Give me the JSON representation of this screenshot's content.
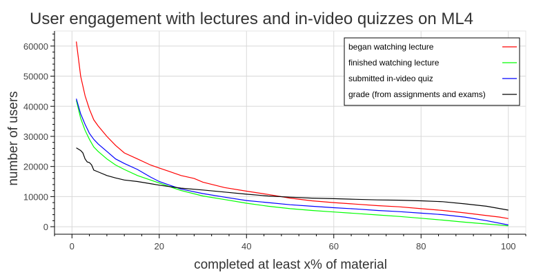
{
  "chart_data": {
    "type": "line",
    "title": "User engagement with lectures and in-video quizzes on ML4",
    "xlabel": "completed at least x% of material",
    "ylabel": "number of users",
    "xlim": [
      -4,
      104
    ],
    "ylim": [
      -2500,
      65000
    ],
    "x_ticks": [
      0,
      20,
      40,
      60,
      80,
      100
    ],
    "y_ticks": [
      0,
      10000,
      20000,
      30000,
      40000,
      50000,
      60000
    ],
    "grid": true,
    "legend_position": "top-right",
    "series": [
      {
        "name": "began watching lecture",
        "color": "#ff0000",
        "points": [
          [
            1,
            61500
          ],
          [
            2,
            50000
          ],
          [
            3,
            43500
          ],
          [
            4,
            39000
          ],
          [
            5,
            35500
          ],
          [
            6,
            33500
          ],
          [
            8,
            30000
          ],
          [
            10,
            27000
          ],
          [
            12,
            24500
          ],
          [
            15,
            22500
          ],
          [
            18,
            20500
          ],
          [
            20,
            19500
          ],
          [
            22,
            18500
          ],
          [
            25,
            17000
          ],
          [
            28,
            16000
          ],
          [
            30,
            14800
          ],
          [
            35,
            13000
          ],
          [
            40,
            11800
          ],
          [
            45,
            10700
          ],
          [
            50,
            9500
          ],
          [
            55,
            8600
          ],
          [
            60,
            8000
          ],
          [
            65,
            7500
          ],
          [
            70,
            7000
          ],
          [
            75,
            6600
          ],
          [
            80,
            6000
          ],
          [
            85,
            5400
          ],
          [
            90,
            4600
          ],
          [
            95,
            3700
          ],
          [
            98,
            3200
          ],
          [
            100,
            2700
          ]
        ]
      },
      {
        "name": "finished watching lecture",
        "color": "#00ff00",
        "points": [
          [
            1,
            42000
          ],
          [
            2,
            36000
          ],
          [
            3,
            32000
          ],
          [
            4,
            29000
          ],
          [
            5,
            26500
          ],
          [
            6,
            25000
          ],
          [
            8,
            22500
          ],
          [
            10,
            20500
          ],
          [
            12,
            19000
          ],
          [
            15,
            17000
          ],
          [
            18,
            15500
          ],
          [
            20,
            14500
          ],
          [
            22,
            13500
          ],
          [
            25,
            12000
          ],
          [
            30,
            10200
          ],
          [
            35,
            9000
          ],
          [
            40,
            7800
          ],
          [
            45,
            6800
          ],
          [
            50,
            6000
          ],
          [
            55,
            5400
          ],
          [
            60,
            4900
          ],
          [
            65,
            4400
          ],
          [
            70,
            3900
          ],
          [
            75,
            3400
          ],
          [
            80,
            2800
          ],
          [
            85,
            2200
          ],
          [
            90,
            1500
          ],
          [
            95,
            900
          ],
          [
            100,
            300
          ]
        ]
      },
      {
        "name": "submitted in-video quiz",
        "color": "#0000ff",
        "points": [
          [
            1,
            42500
          ],
          [
            2,
            37500
          ],
          [
            3,
            34000
          ],
          [
            4,
            31000
          ],
          [
            5,
            29000
          ],
          [
            6,
            27500
          ],
          [
            8,
            25000
          ],
          [
            10,
            22500
          ],
          [
            12,
            21000
          ],
          [
            15,
            19000
          ],
          [
            18,
            16500
          ],
          [
            20,
            15000
          ],
          [
            22,
            14000
          ],
          [
            25,
            12500
          ],
          [
            30,
            11000
          ],
          [
            35,
            9800
          ],
          [
            40,
            8700
          ],
          [
            45,
            8000
          ],
          [
            50,
            7300
          ],
          [
            55,
            6800
          ],
          [
            60,
            6300
          ],
          [
            65,
            5900
          ],
          [
            70,
            5400
          ],
          [
            75,
            5000
          ],
          [
            80,
            4500
          ],
          [
            85,
            4000
          ],
          [
            90,
            3200
          ],
          [
            95,
            2000
          ],
          [
            100,
            600
          ]
        ]
      },
      {
        "name": "grade (from assignments and exams)",
        "color": "#000000",
        "points": [
          [
            1,
            26200
          ],
          [
            2,
            25300
          ],
          [
            2.5,
            24500
          ],
          [
            3,
            22500
          ],
          [
            3.5,
            21500
          ],
          [
            4,
            21300
          ],
          [
            4.5,
            20500
          ],
          [
            5,
            18800
          ],
          [
            6,
            18200
          ],
          [
            8,
            17000
          ],
          [
            10,
            16200
          ],
          [
            12,
            15500
          ],
          [
            15,
            15000
          ],
          [
            18,
            14300
          ],
          [
            20,
            13800
          ],
          [
            25,
            12800
          ],
          [
            30,
            12200
          ],
          [
            35,
            11500
          ],
          [
            40,
            10800
          ],
          [
            45,
            10200
          ],
          [
            50,
            9800
          ],
          [
            55,
            9500
          ],
          [
            60,
            9300
          ],
          [
            65,
            9100
          ],
          [
            70,
            8900
          ],
          [
            75,
            8800
          ],
          [
            80,
            8600
          ],
          [
            85,
            8300
          ],
          [
            90,
            7600
          ],
          [
            95,
            6800
          ],
          [
            100,
            5500
          ]
        ]
      }
    ]
  }
}
